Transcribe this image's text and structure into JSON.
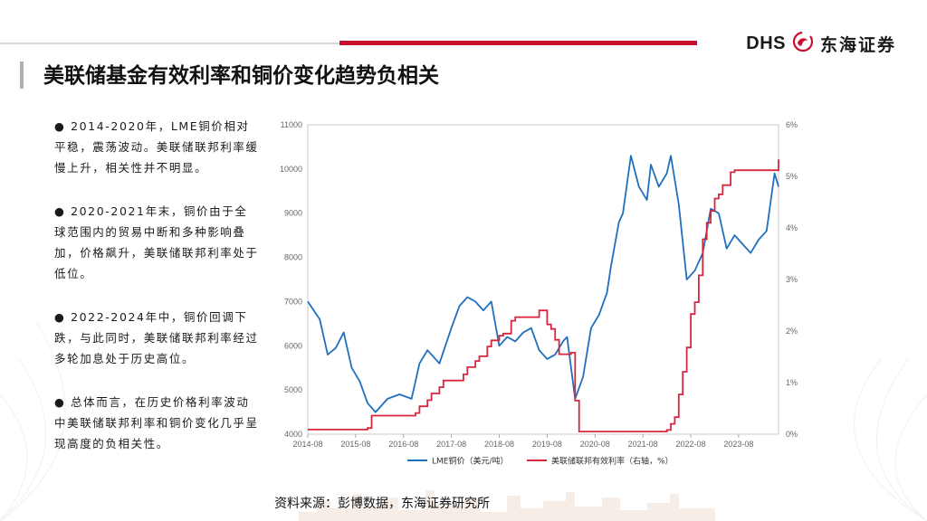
{
  "header": {
    "brand_latin": "DHS",
    "brand_cn": "东海证券",
    "logo_icon": "dragon-icon"
  },
  "title": "美联储基金有效利率和铜价变化趋势负相关",
  "bullets": [
    "●  2014-2020年，LME铜价相对平稳，震荡波动。美联储联邦利率缓慢上升，相关性并不明显。",
    "●  2020-2021年末，铜价由于全球范围内的贸易中断和多种影响叠加，价格飙升，美联储联邦利率处于低位。",
    "●  2022-2024年中，铜价回调下跌，与此同时，美联储联邦利率经过多轮加息处于历史高位。",
    "●  总体而言，在历史价格利率波动中美联储联邦利率和铜价变化几乎呈现高度的负相关性。"
  ],
  "source": "资料来源：彭博数据，东海证券研究所",
  "colors": {
    "accent": "#c8102e",
    "copper": "#1f6fbf",
    "rate": "#d7263d"
  },
  "chart_data": {
    "type": "line",
    "x_ticks": [
      "2014-08",
      "2015-08",
      "2016-08",
      "2017-08",
      "2018-08",
      "2019-08",
      "2020-08",
      "2021-08",
      "2022-08",
      "2023-08"
    ],
    "y_left_ticks": [
      "4000",
      "5000",
      "6000",
      "7000",
      "8000",
      "9000",
      "10000",
      "11000"
    ],
    "y_right_ticks": [
      "0%",
      "1%",
      "2%",
      "3%",
      "4%",
      "5%",
      "6%"
    ],
    "y_left_range": [
      4000,
      11000
    ],
    "y_right_range": [
      0,
      6
    ],
    "x_range": [
      "2014-08",
      "2024-06"
    ],
    "grid": false,
    "legend_position": "bottom",
    "series": [
      {
        "name": "LME铜价（美元/吨）",
        "axis": "left",
        "color": "#1f6fbf",
        "x": [
          "2014-08",
          "2014-11",
          "2015-01",
          "2015-03",
          "2015-05",
          "2015-07",
          "2015-09",
          "2015-11",
          "2016-01",
          "2016-04",
          "2016-07",
          "2016-10",
          "2016-12",
          "2017-02",
          "2017-05",
          "2017-08",
          "2017-10",
          "2017-12",
          "2018-02",
          "2018-04",
          "2018-06",
          "2018-08",
          "2018-10",
          "2018-12",
          "2019-02",
          "2019-04",
          "2019-06",
          "2019-08",
          "2019-10",
          "2019-12",
          "2020-01",
          "2020-03",
          "2020-05",
          "2020-07",
          "2020-09",
          "2020-11",
          "2020-12",
          "2021-02",
          "2021-03",
          "2021-05",
          "2021-07",
          "2021-09",
          "2021-10",
          "2021-12",
          "2022-02",
          "2022-03",
          "2022-05",
          "2022-07",
          "2022-09",
          "2022-11",
          "2023-01",
          "2023-03",
          "2023-05",
          "2023-07",
          "2023-09",
          "2023-11",
          "2024-01",
          "2024-03",
          "2024-05",
          "2024-06"
        ],
        "y": [
          7000,
          6600,
          5800,
          5950,
          6300,
          5500,
          5200,
          4700,
          4500,
          4800,
          4900,
          4800,
          5600,
          5900,
          5600,
          6400,
          6900,
          7100,
          7000,
          6800,
          7000,
          6000,
          6200,
          6100,
          6300,
          6400,
          5900,
          5700,
          5800,
          6100,
          6200,
          4800,
          5300,
          6400,
          6700,
          7200,
          7800,
          8800,
          9000,
          10300,
          9600,
          9300,
          10100,
          9600,
          9900,
          10300,
          9200,
          7500,
          7700,
          8100,
          9100,
          9000,
          8200,
          8500,
          8300,
          8100,
          8400,
          8600,
          9900,
          9600
        ]
      },
      {
        "name": "美联储联邦有效利率（右轴，%）",
        "axis": "right",
        "color": "#d7263d",
        "x": [
          "2014-08",
          "2015-11",
          "2015-12",
          "2016-11",
          "2016-12",
          "2017-02",
          "2017-03",
          "2017-05",
          "2017-06",
          "2017-11",
          "2017-12",
          "2018-02",
          "2018-03",
          "2018-05",
          "2018-06",
          "2018-08",
          "2018-09",
          "2018-11",
          "2018-12",
          "2019-06",
          "2019-07",
          "2019-08",
          "2019-09",
          "2019-10",
          "2019-11",
          "2020-02",
          "2020-03",
          "2020-04",
          "2022-02",
          "2022-03",
          "2022-04",
          "2022-05",
          "2022-06",
          "2022-07",
          "2022-08",
          "2022-09",
          "2022-10",
          "2022-11",
          "2022-12",
          "2023-01",
          "2023-02",
          "2023-03",
          "2023-04",
          "2023-06",
          "2023-07",
          "2024-06"
        ],
        "y": [
          0.09,
          0.12,
          0.36,
          0.41,
          0.54,
          0.66,
          0.79,
          0.91,
          1.04,
          1.16,
          1.3,
          1.42,
          1.51,
          1.7,
          1.82,
          1.91,
          1.95,
          2.2,
          2.27,
          2.4,
          2.4,
          2.13,
          2.04,
          1.83,
          1.55,
          1.58,
          0.65,
          0.05,
          0.08,
          0.2,
          0.33,
          0.77,
          1.21,
          1.68,
          2.33,
          2.56,
          3.08,
          3.78,
          4.1,
          4.33,
          4.57,
          4.65,
          4.83,
          5.08,
          5.12,
          5.33
        ]
      }
    ]
  }
}
